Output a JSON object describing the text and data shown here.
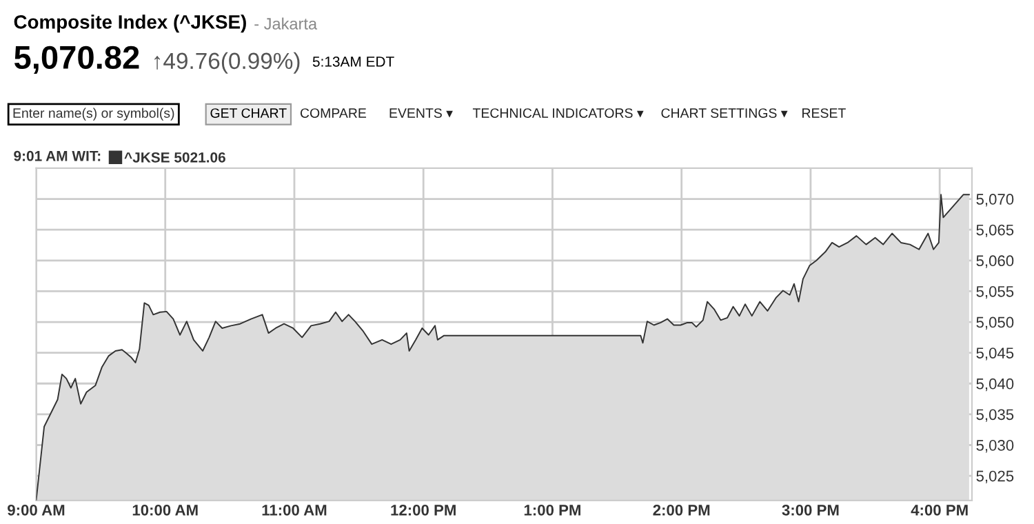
{
  "chart_data": {
    "type": "area",
    "title": "Composite Index (^JKSE)",
    "subtitle": "- Jakarta",
    "annotations": [
      "5,070.82",
      "↑49.76(0.99%)",
      "5:13AM EDT",
      "Enter name(s) or symbol(s)",
      "GET CHART",
      "COMPARE",
      "EVENTS ▾",
      "TECHNICAL INDICATORS ▾",
      "CHART SETTINGS ▾",
      "RESET"
    ],
    "legend_title": "9:01 AM WIT:",
    "legend": "top left",
    "grid": true,
    "marker": "none",
    "line_style": "solid",
    "xlim": [
      9.0,
      16.25
    ],
    "ylim": [
      5021,
      5075
    ],
    "xticks": [
      {
        "value": 9,
        "label": "9:00 AM"
      },
      {
        "value": 10,
        "label": "10:00 AM"
      },
      {
        "value": 11,
        "label": "11:00 AM"
      },
      {
        "value": 12,
        "label": "12:00 PM"
      },
      {
        "value": 13,
        "label": "1:00 PM"
      },
      {
        "value": 14,
        "label": "2:00 PM"
      },
      {
        "value": 15,
        "label": "3:00 PM"
      },
      {
        "value": 16,
        "label": "4:00 PM"
      }
    ],
    "yticks": [
      {
        "value": 5025,
        "label": "5,025"
      },
      {
        "value": 5030,
        "label": "5,030"
      },
      {
        "value": 5035,
        "label": "5,035"
      },
      {
        "value": 5040,
        "label": "5,040"
      },
      {
        "value": 5045,
        "label": "5,045"
      },
      {
        "value": 5050,
        "label": "5,050"
      },
      {
        "value": 5055,
        "label": "5,055"
      },
      {
        "value": 5060,
        "label": "5,060"
      },
      {
        "value": 5065,
        "label": "5,065"
      },
      {
        "value": 5070,
        "label": "5,070"
      }
    ],
    "series": [
      {
        "name": "^JKSE 5021.06",
        "color": "#333333",
        "x": [
          9.0,
          9.062,
          9.166,
          9.2,
          9.234,
          9.269,
          9.303,
          9.345,
          9.39,
          9.459,
          9.51,
          9.562,
          9.614,
          9.665,
          9.7,
          9.734,
          9.769,
          9.8,
          9.838,
          9.872,
          9.907,
          9.96,
          10.01,
          10.062,
          10.114,
          10.166,
          10.22,
          10.29,
          10.34,
          10.39,
          10.441,
          10.51,
          10.58,
          10.665,
          10.752,
          10.8,
          10.855,
          10.92,
          10.99,
          11.06,
          11.13,
          11.2,
          11.27,
          11.32,
          11.37,
          11.42,
          11.47,
          11.53,
          11.6,
          11.68,
          11.75,
          11.82,
          11.87,
          11.89,
          11.94,
          11.99,
          12.04,
          12.09,
          12.11,
          12.16,
          13.683,
          13.7,
          13.734,
          13.786,
          13.838,
          13.89,
          13.94,
          13.993,
          14.045,
          14.08,
          14.114,
          14.166,
          14.2,
          14.252,
          14.303,
          14.355,
          14.4,
          14.448,
          14.493,
          14.545,
          14.607,
          14.666,
          14.734,
          14.786,
          14.838,
          14.872,
          14.907,
          14.941,
          14.993,
          15.045,
          15.114,
          15.166,
          15.22,
          15.286,
          15.355,
          15.43,
          15.5,
          15.562,
          15.631,
          15.7,
          15.77,
          15.84,
          15.91,
          15.952,
          15.993,
          16.01,
          16.028,
          16.183,
          16.228
        ],
        "values": [
          5021.06,
          5033.0,
          5037.4,
          5041.5,
          5040.8,
          5039.3,
          5040.8,
          5036.7,
          5038.6,
          5039.7,
          5042.7,
          5044.5,
          5045.3,
          5045.5,
          5044.9,
          5044.3,
          5043.4,
          5045.6,
          5053.1,
          5052.7,
          5051.2,
          5051.6,
          5051.7,
          5050.5,
          5047.9,
          5050.1,
          5047.1,
          5045.3,
          5047.5,
          5050.1,
          5049.0,
          5049.4,
          5049.7,
          5050.5,
          5051.2,
          5048.2,
          5049.0,
          5049.7,
          5049.0,
          5047.5,
          5049.4,
          5049.7,
          5050.1,
          5051.6,
          5050.1,
          5051.2,
          5050.1,
          5048.6,
          5046.4,
          5047.1,
          5046.4,
          5047.1,
          5048.2,
          5045.3,
          5047.1,
          5049.0,
          5047.9,
          5049.4,
          5047.1,
          5047.8,
          5047.8,
          5046.6,
          5050.1,
          5049.5,
          5049.9,
          5050.5,
          5049.5,
          5049.5,
          5049.9,
          5049.9,
          5049.2,
          5050.3,
          5053.3,
          5052.1,
          5050.3,
          5050.7,
          5052.5,
          5051.0,
          5052.9,
          5051.0,
          5053.3,
          5051.8,
          5054.0,
          5055.1,
          5054.4,
          5056.2,
          5053.3,
          5057.0,
          5059.2,
          5060.0,
          5061.4,
          5062.9,
          5062.2,
          5062.9,
          5064.0,
          5062.6,
          5063.7,
          5062.6,
          5064.4,
          5062.9,
          5062.6,
          5061.8,
          5064.4,
          5061.8,
          5062.9,
          5070.7,
          5067.0,
          5070.7,
          5070.7
        ]
      }
    ]
  }
}
